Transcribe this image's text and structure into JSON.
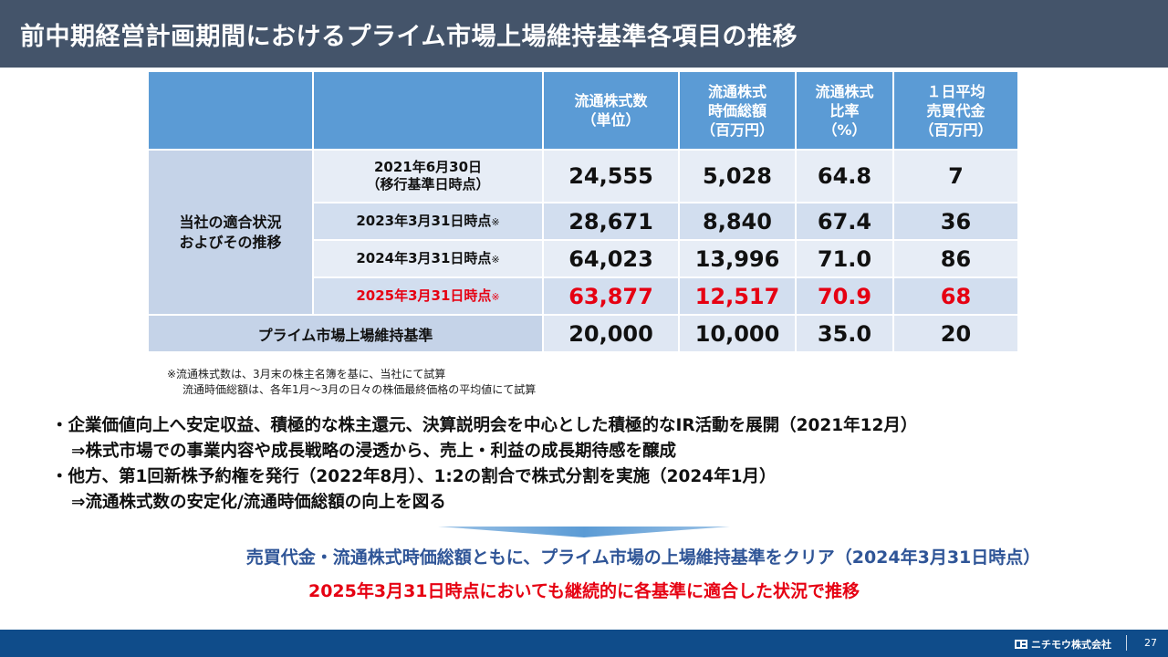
{
  "title": "前中期経営計画期間におけるプライム市場上場維持基準各項目の推移",
  "table": {
    "headers": [
      "",
      "",
      "流通株式数\n（単位）",
      "流通株式\n時価総額\n（百万円）",
      "流通株式\n比率\n（%）",
      "１日平均\n売買代金\n（百万円）"
    ],
    "group_label": "当社の適合状況\nおよびその推移",
    "rows": [
      {
        "label": "2021年6月30日\n（移行基準日時点）",
        "mark": "",
        "values": [
          "24,555",
          "5,028",
          "64.8",
          "7"
        ]
      },
      {
        "label": "2023年3月31日時点",
        "mark": "※",
        "values": [
          "28,671",
          "8,840",
          "67.4",
          "36"
        ]
      },
      {
        "label": "2024年3月31日時点",
        "mark": "※",
        "values": [
          "64,023",
          "13,996",
          "71.0",
          "86"
        ]
      },
      {
        "label": "2025年3月31日時点",
        "mark": "※",
        "values": [
          "63,877",
          "12,517",
          "70.9",
          "68"
        ]
      }
    ],
    "standard": {
      "label": "プライム市場上場維持基準",
      "values": [
        "20,000",
        "10,000",
        "35.0",
        "20"
      ]
    }
  },
  "footnote": [
    "※流通株式数は、3月末の株主名簿を基に、当社にて試算",
    "流通時価総額は、各年1月～3月の日々の株価最終価格の平均値にて試算"
  ],
  "bullets": [
    "・企業価値向上へ安定収益、積極的な株主還元、決算説明会を中心とした積極的なIR活動を展開（2021年12月）",
    "⇒株式市場での事業内容や成長戦略の浸透から、売上・利益の成長期待感を醸成",
    "・他方、第1回新株予約権を発行（2022年8月）、1:2の割合で株式分割を実施（2024年1月）",
    "⇒流通株式数の安定化/流通時価総額の向上を図る"
  ],
  "conclusion_blue": "売買代金・流通株式時価総額ともに、プライム市場の上場維持基準をクリア（2024年3月31日時点）",
  "conclusion_red": "2025年3月31日時点においても継続的に各基準に適合した状況で推移",
  "footer": {
    "company": "ニチモウ株式会社",
    "page": "27"
  },
  "colors": {
    "title_bg": "#44546a",
    "header_bg": "#5b9bd5",
    "accent_red": "#e60012",
    "accent_blue": "#2f5597",
    "footer_bg": "#0f4c8a"
  }
}
